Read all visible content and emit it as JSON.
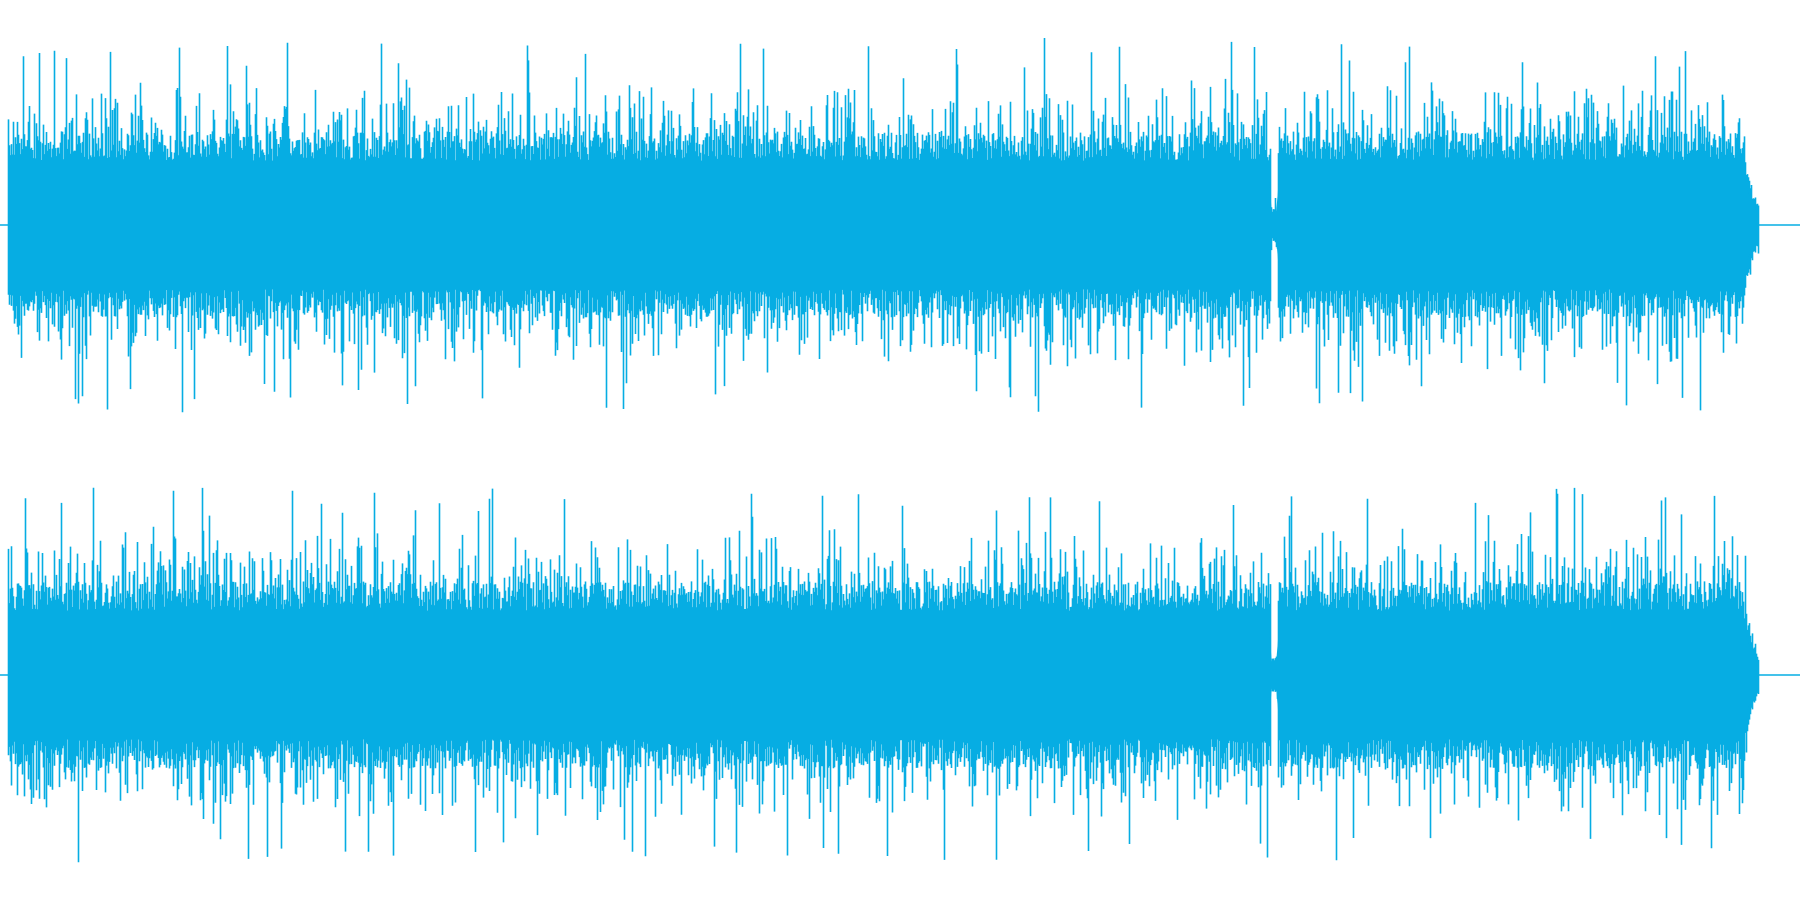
{
  "waveform": {
    "color": "#06ade3",
    "background": "#ffffff",
    "channels": [
      {
        "id": "left",
        "name": ""
      },
      {
        "id": "right",
        "name": ""
      }
    ],
    "ends_with_fade_out": true
  }
}
